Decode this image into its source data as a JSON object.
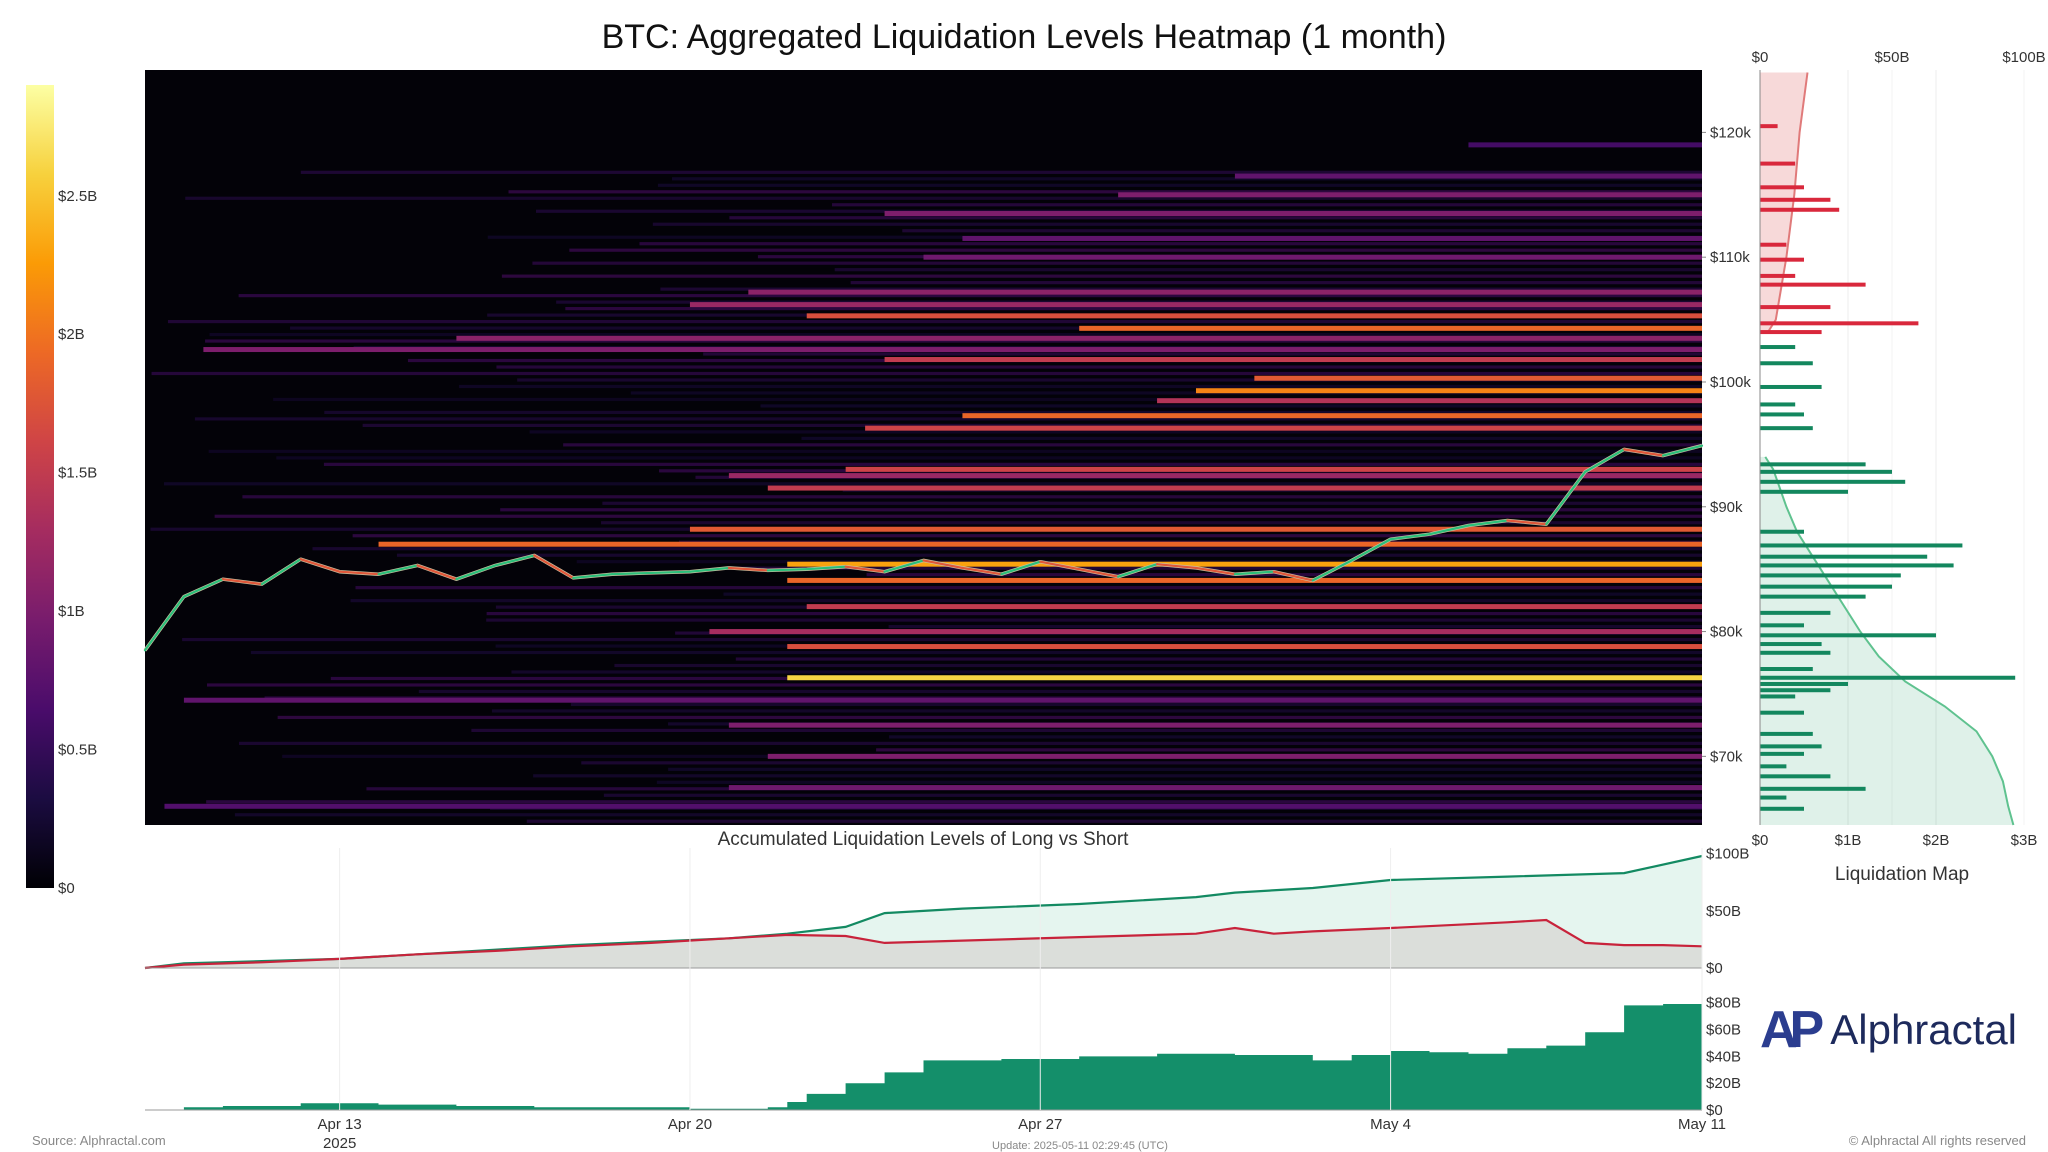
{
  "page": {
    "title": "BTC: Aggregated Liquidation Levels Heatmap (1 month)",
    "source": "Source: Alphractal.com",
    "update": "Update: 2025-05-11 02:29:45 (UTC)",
    "rights": "© Alphractal All rights reserved",
    "logo_text": "Alphractal",
    "logo_mark": "AP"
  },
  "chart_data": [
    {
      "type": "heatmap",
      "title": "BTC: Aggregated Liquidation Levels Heatmap (1 month)",
      "x_ticks": [
        "Apr 13",
        "Apr 20",
        "Apr 27",
        "May 4",
        "May 11"
      ],
      "x_tick_sublabel": "2025",
      "xlim_days": [
        0,
        40
      ],
      "y_ticks": [
        "$70k",
        "$80k",
        "$90k",
        "$100k",
        "$110k",
        "$120k"
      ],
      "ylim": [
        64500,
        125000
      ],
      "colorbar": {
        "ticks": [
          "$0",
          "$0.5B",
          "$1B",
          "$1.5B",
          "$2B",
          "$2.5B"
        ],
        "range": [
          0,
          2.9
        ],
        "colorscale": [
          "#000004",
          "#1b0c41",
          "#4a0c6b",
          "#781c6d",
          "#a52c60",
          "#cf4446",
          "#ed6925",
          "#fb9b06",
          "#f7d13d",
          "#fcffa4"
        ]
      },
      "price_path": [
        [
          0,
          78500
        ],
        [
          1,
          82800
        ],
        [
          2,
          84200
        ],
        [
          3,
          83800
        ],
        [
          4,
          85800
        ],
        [
          5,
          84800
        ],
        [
          6,
          84600
        ],
        [
          7,
          85300
        ],
        [
          8,
          84200
        ],
        [
          9,
          85300
        ],
        [
          10,
          86100
        ],
        [
          11,
          84300
        ],
        [
          12,
          84600
        ],
        [
          13,
          84700
        ],
        [
          14,
          84800
        ],
        [
          15,
          85100
        ],
        [
          16,
          84900
        ],
        [
          17,
          85000
        ],
        [
          18,
          85200
        ],
        [
          19,
          84800
        ],
        [
          20,
          85700
        ],
        [
          21,
          85100
        ],
        [
          22,
          84600
        ],
        [
          23,
          85600
        ],
        [
          24,
          85000
        ],
        [
          25,
          84400
        ],
        [
          26,
          85400
        ],
        [
          27,
          85100
        ],
        [
          28,
          84600
        ],
        [
          29,
          84800
        ],
        [
          30,
          84100
        ],
        [
          31,
          85700
        ],
        [
          32,
          87400
        ],
        [
          33,
          87800
        ],
        [
          34,
          88500
        ],
        [
          35,
          88900
        ],
        [
          36,
          88600
        ],
        [
          37,
          92800
        ],
        [
          38,
          94600
        ],
        [
          39,
          94100
        ],
        [
          40,
          94900
        ]
      ],
      "liquidation_bands": [
        {
          "price": 76300,
          "start_day": 16.5,
          "value": 2.6
        },
        {
          "price": 85400,
          "start_day": 16.5,
          "value": 2.3
        },
        {
          "price": 84100,
          "start_day": 16.5,
          "value": 1.9
        },
        {
          "price": 78800,
          "start_day": 16.5,
          "value": 1.7
        },
        {
          "price": 82000,
          "start_day": 17.0,
          "value": 1.5
        },
        {
          "price": 87000,
          "start_day": 6.0,
          "value": 1.9
        },
        {
          "price": 88200,
          "start_day": 14.0,
          "value": 1.8
        },
        {
          "price": 91500,
          "start_day": 16.0,
          "value": 1.5
        },
        {
          "price": 92500,
          "start_day": 15.0,
          "value": 1.2
        },
        {
          "price": 93000,
          "start_day": 18.0,
          "value": 1.6
        },
        {
          "price": 96300,
          "start_day": 18.5,
          "value": 1.6
        },
        {
          "price": 97300,
          "start_day": 21.0,
          "value": 1.9
        },
        {
          "price": 98500,
          "start_day": 26.0,
          "value": 1.4
        },
        {
          "price": 99300,
          "start_day": 27.0,
          "value": 2.1
        },
        {
          "price": 100300,
          "start_day": 28.5,
          "value": 1.8
        },
        {
          "price": 101800,
          "start_day": 19.0,
          "value": 1.5
        },
        {
          "price": 102600,
          "start_day": 1.5,
          "value": 1.0
        },
        {
          "price": 103500,
          "start_day": 8.0,
          "value": 1.1
        },
        {
          "price": 104300,
          "start_day": 24.0,
          "value": 1.9
        },
        {
          "price": 105300,
          "start_day": 17.0,
          "value": 1.7
        },
        {
          "price": 106200,
          "start_day": 14.0,
          "value": 1.2
        },
        {
          "price": 107200,
          "start_day": 15.5,
          "value": 1.1
        },
        {
          "price": 110000,
          "start_day": 20.0,
          "value": 0.9
        },
        {
          "price": 111500,
          "start_day": 21.0,
          "value": 0.8
        },
        {
          "price": 113500,
          "start_day": 19.0,
          "value": 1.0
        },
        {
          "price": 115000,
          "start_day": 25.0,
          "value": 1.0
        },
        {
          "price": 116500,
          "start_day": 28.0,
          "value": 0.8
        },
        {
          "price": 119000,
          "start_day": 34.0,
          "value": 0.6
        },
        {
          "price": 72500,
          "start_day": 15.0,
          "value": 1.0
        },
        {
          "price": 70000,
          "start_day": 16.0,
          "value": 1.0
        },
        {
          "price": 67500,
          "start_day": 15.0,
          "value": 0.9
        },
        {
          "price": 66000,
          "start_day": 0.5,
          "value": 0.7
        },
        {
          "price": 74500,
          "start_day": 1.0,
          "value": 0.8
        },
        {
          "price": 80000,
          "start_day": 14.5,
          "value": 1.3
        }
      ]
    },
    {
      "type": "bar",
      "title": "Liquidation Map",
      "orientation": "horizontal",
      "bottom_axis_ticks": [
        "$0",
        "$1B",
        "$2B",
        "$3B"
      ],
      "top_axis_ticks": [
        "$0",
        "$50B",
        "$100B"
      ],
      "bottom_xlim": [
        0,
        3
      ],
      "top_xlim": [
        0,
        100
      ],
      "ylim": [
        64500,
        125000
      ],
      "short_bars": [
        [
          104700,
          1.8
        ],
        [
          106000,
          0.8
        ],
        [
          107800,
          1.2
        ],
        [
          109800,
          0.5
        ],
        [
          111000,
          0.3
        ],
        [
          113800,
          0.9
        ],
        [
          114600,
          0.8
        ],
        [
          115600,
          0.5
        ],
        [
          117500,
          0.4
        ],
        [
          120500,
          0.2
        ],
        [
          104000,
          0.7
        ],
        [
          108500,
          0.4
        ]
      ],
      "short_cumulative": [
        [
          124800,
          18
        ],
        [
          120000,
          15
        ],
        [
          115000,
          13
        ],
        [
          110000,
          10
        ],
        [
          105000,
          6
        ],
        [
          104000,
          3
        ]
      ],
      "long_bars": [
        [
          102800,
          0.4
        ],
        [
          101500,
          0.6
        ],
        [
          99600,
          0.7
        ],
        [
          98200,
          0.4
        ],
        [
          97400,
          0.5
        ],
        [
          96300,
          0.6
        ],
        [
          93400,
          1.2
        ],
        [
          92800,
          1.5
        ],
        [
          92000,
          1.65
        ],
        [
          91200,
          1.0
        ],
        [
          88000,
          0.5
        ],
        [
          86900,
          2.3
        ],
        [
          86000,
          1.9
        ],
        [
          85300,
          2.2
        ],
        [
          84500,
          1.6
        ],
        [
          83600,
          1.5
        ],
        [
          82800,
          1.2
        ],
        [
          81500,
          0.8
        ],
        [
          80500,
          0.5
        ],
        [
          79700,
          2.0
        ],
        [
          79000,
          0.7
        ],
        [
          78300,
          0.8
        ],
        [
          77000,
          0.6
        ],
        [
          76300,
          2.9
        ],
        [
          75800,
          1.0
        ],
        [
          75300,
          0.8
        ],
        [
          74800,
          0.4
        ],
        [
          73500,
          0.5
        ],
        [
          71800,
          0.6
        ],
        [
          70800,
          0.7
        ],
        [
          70200,
          0.5
        ],
        [
          69200,
          0.3
        ],
        [
          68400,
          0.8
        ],
        [
          67400,
          1.2
        ],
        [
          66700,
          0.3
        ],
        [
          65800,
          0.5
        ]
      ],
      "long_cumulative": [
        [
          94000,
          2
        ],
        [
          93000,
          5
        ],
        [
          90000,
          10
        ],
        [
          88000,
          14
        ],
        [
          86000,
          20
        ],
        [
          84000,
          26
        ],
        [
          80000,
          38
        ],
        [
          78000,
          45
        ],
        [
          76000,
          55
        ],
        [
          74000,
          70
        ],
        [
          72000,
          82
        ],
        [
          70000,
          88
        ],
        [
          68000,
          92
        ],
        [
          66000,
          94
        ],
        [
          64500,
          96
        ]
      ]
    },
    {
      "type": "area",
      "title": "Accumulated Liquidation Levels of Long vs Short",
      "y_ticks": [
        "$0",
        "$50B",
        "$100B"
      ],
      "ylim": [
        0,
        105
      ],
      "series": [
        {
          "values": [
            [
              0,
              0
            ],
            [
              1,
              4
            ],
            [
              3,
              6
            ],
            [
              5,
              8
            ],
            [
              7,
              12
            ],
            [
              9,
              16
            ],
            [
              11,
              20
            ],
            [
              13,
              23
            ],
            [
              15,
              26
            ],
            [
              16.5,
              30
            ],
            [
              18,
              36
            ],
            [
              19,
              48
            ],
            [
              21,
              52
            ],
            [
              24,
              56
            ],
            [
              27,
              62
            ],
            [
              28,
              66
            ],
            [
              30,
              70
            ],
            [
              32,
              77
            ],
            [
              35,
              80
            ],
            [
              38,
              83
            ],
            [
              40,
              98
            ]
          ]
        },
        {
          "values": [
            [
              0,
              0
            ],
            [
              1,
              3
            ],
            [
              3,
              5
            ],
            [
              5,
              8
            ],
            [
              7,
              12
            ],
            [
              9,
              15
            ],
            [
              11,
              19
            ],
            [
              13,
              22
            ],
            [
              15,
              26
            ],
            [
              16.5,
              29
            ],
            [
              18,
              28
            ],
            [
              19,
              22
            ],
            [
              21,
              24
            ],
            [
              24,
              27
            ],
            [
              27,
              30
            ],
            [
              28,
              35
            ],
            [
              29,
              30
            ],
            [
              30,
              32
            ],
            [
              32,
              35
            ],
            [
              35,
              40
            ],
            [
              36,
              42
            ],
            [
              37,
              22
            ],
            [
              38,
              20
            ],
            [
              39,
              20
            ],
            [
              40,
              19
            ]
          ]
        }
      ]
    },
    {
      "type": "area",
      "y_ticks": [
        "$0",
        "$20B",
        "$40B",
        "$60B",
        "$80B"
      ],
      "ylim": [
        0,
        85
      ],
      "series": [
        {
          "values": [
            [
              0,
              0
            ],
            [
              1,
              2
            ],
            [
              2,
              3
            ],
            [
              4,
              5
            ],
            [
              6,
              4
            ],
            [
              8,
              3
            ],
            [
              10,
              2
            ],
            [
              12,
              2
            ],
            [
              14,
              1
            ],
            [
              16,
              2
            ],
            [
              16.5,
              6
            ],
            [
              17,
              12
            ],
            [
              18,
              20
            ],
            [
              19,
              28
            ],
            [
              20,
              37
            ],
            [
              22,
              38
            ],
            [
              24,
              40
            ],
            [
              26,
              42
            ],
            [
              28,
              41
            ],
            [
              30,
              37
            ],
            [
              31,
              41
            ],
            [
              32,
              44
            ],
            [
              33,
              43
            ],
            [
              34,
              42
            ],
            [
              35,
              46
            ],
            [
              36,
              48
            ],
            [
              37,
              58
            ],
            [
              38,
              78
            ],
            [
              39,
              79
            ],
            [
              40,
              80
            ]
          ]
        }
      ]
    }
  ]
}
